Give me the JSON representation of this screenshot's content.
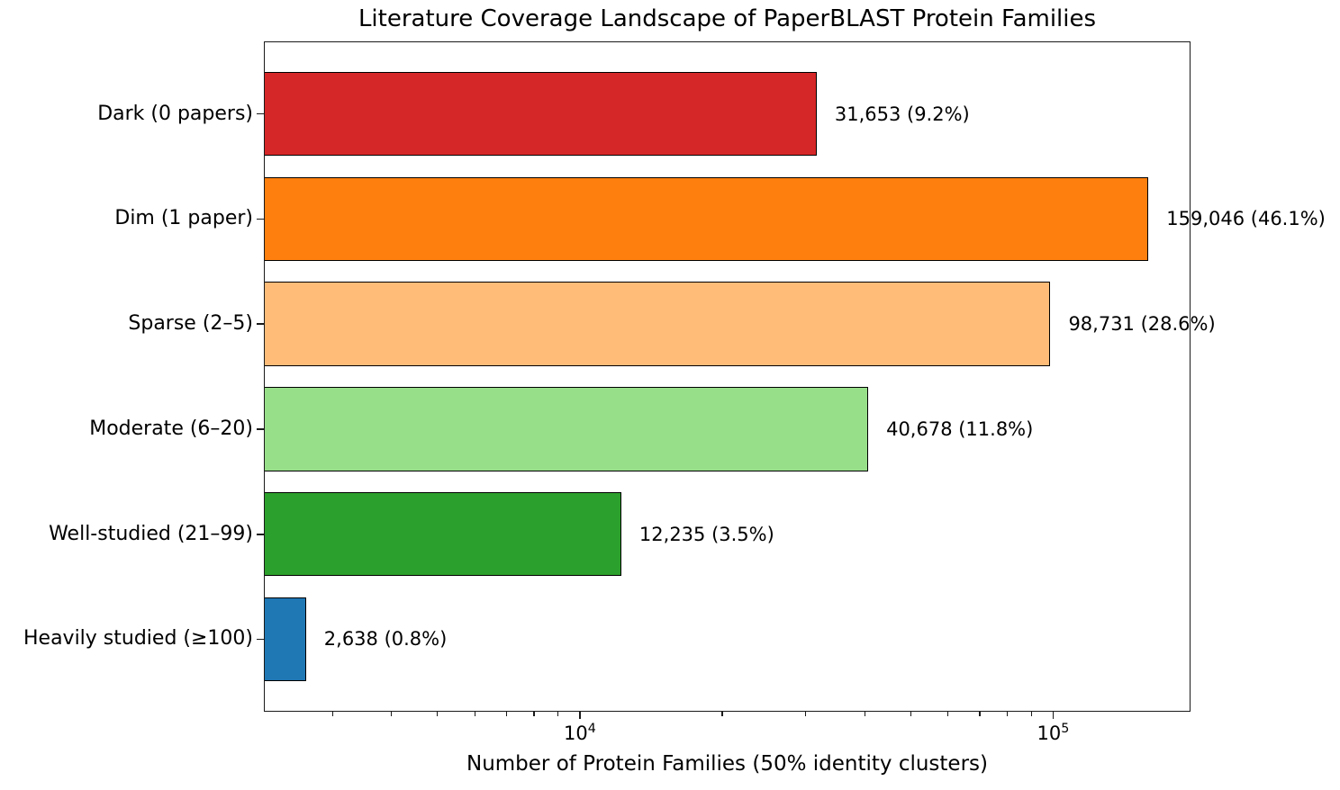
{
  "chart_data": {
    "type": "bar",
    "orientation": "horizontal",
    "title": "Literature Coverage Landscape of PaperBLAST Protein Families",
    "xlabel": "Number of Protein Families (50% identity clusters)",
    "ylabel": "",
    "xscale": "log",
    "xlim": [
      2149,
      195200
    ],
    "grid": false,
    "categories": [
      "Dark (0 papers)",
      "Dim (1 paper)",
      "Sparse (2–5)",
      "Moderate (6–20)",
      "Well-studied (21–99)",
      "Heavily studied (≥100)"
    ],
    "values": [
      31653,
      159046,
      98731,
      40678,
      12235,
      2638
    ],
    "percents": [
      9.2,
      46.1,
      28.6,
      11.8,
      3.5,
      0.8
    ],
    "bar_labels": [
      "31,653 (9.2%)",
      "159,046 (46.1%)",
      "98,731 (28.6%)",
      "40,678 (11.8%)",
      "12,235 (3.5%)",
      "2,638 (0.8%)"
    ],
    "colors": [
      "#d62728",
      "#ff7f0e",
      "#ffbb78",
      "#98df8a",
      "#2ca02c",
      "#1f77b4"
    ],
    "bar_edge_color": "#000000",
    "xticks": [
      {
        "value": 10000,
        "label": "10⁴",
        "base": "10",
        "exp": "4"
      },
      {
        "value": 100000,
        "label": "10⁵",
        "base": "10",
        "exp": "5"
      }
    ]
  }
}
